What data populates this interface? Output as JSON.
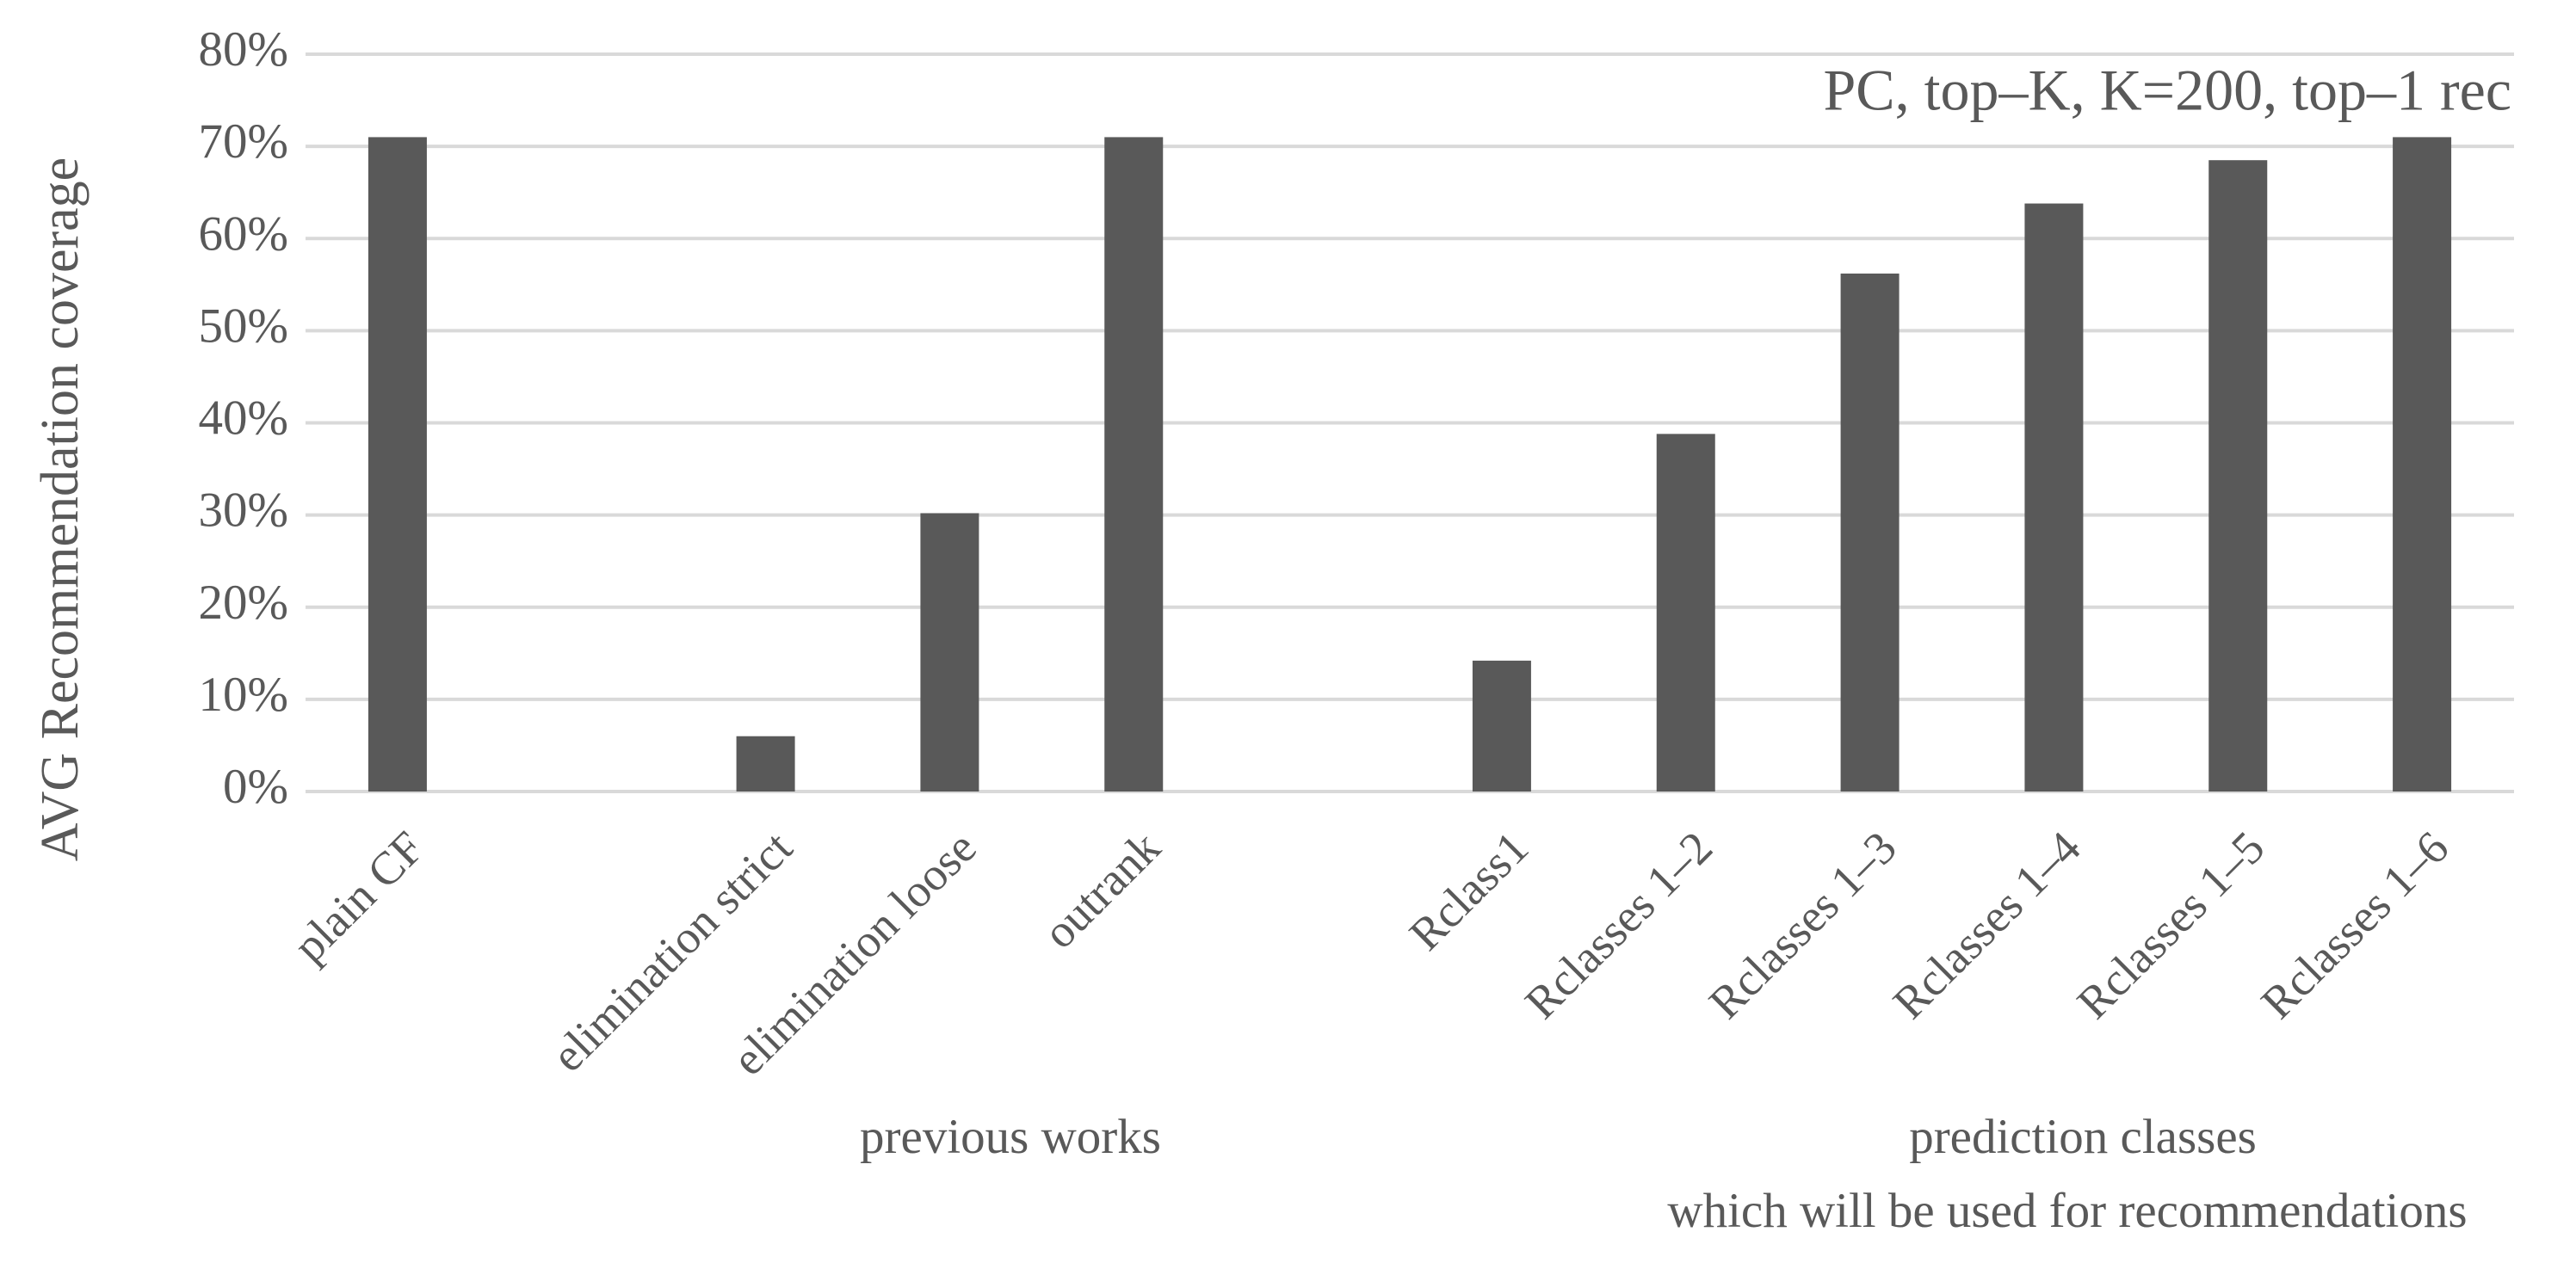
{
  "chart_data": {
    "type": "bar",
    "ylabel": "AVG  Recommendation  coverage",
    "annotations": [
      "PC, top–K, K=200, top–1 rec",
      "previous works",
      "prediction classes",
      "which will be used for recommendations"
    ],
    "categories": [
      "plain CF",
      null,
      "elimination strict",
      "elimination loose",
      "outrank",
      null,
      "Rclass1",
      "Rclasses 1–2",
      "Rclasses 1–3",
      "Rclasses 1–4",
      "Rclasses 1–5",
      "Rclasses 1–6"
    ],
    "values": [
      71,
      null,
      6,
      30.2,
      71,
      null,
      14.2,
      38.8,
      56.2,
      63.8,
      68.5,
      71
    ],
    "color": "#595959",
    "ylim": [
      0,
      80
    ],
    "yticks": [
      {
        "value": 0,
        "label": "0%"
      },
      {
        "value": 10,
        "label": "10%"
      },
      {
        "value": 20,
        "label": "20%"
      },
      {
        "value": 30,
        "label": "30%"
      },
      {
        "value": 40,
        "label": "40%"
      },
      {
        "value": 50,
        "label": "50%"
      },
      {
        "value": 60,
        "label": "60%"
      },
      {
        "value": 70,
        "label": "70%"
      },
      {
        "value": 80,
        "label": "80%"
      }
    ],
    "grid": true
  }
}
